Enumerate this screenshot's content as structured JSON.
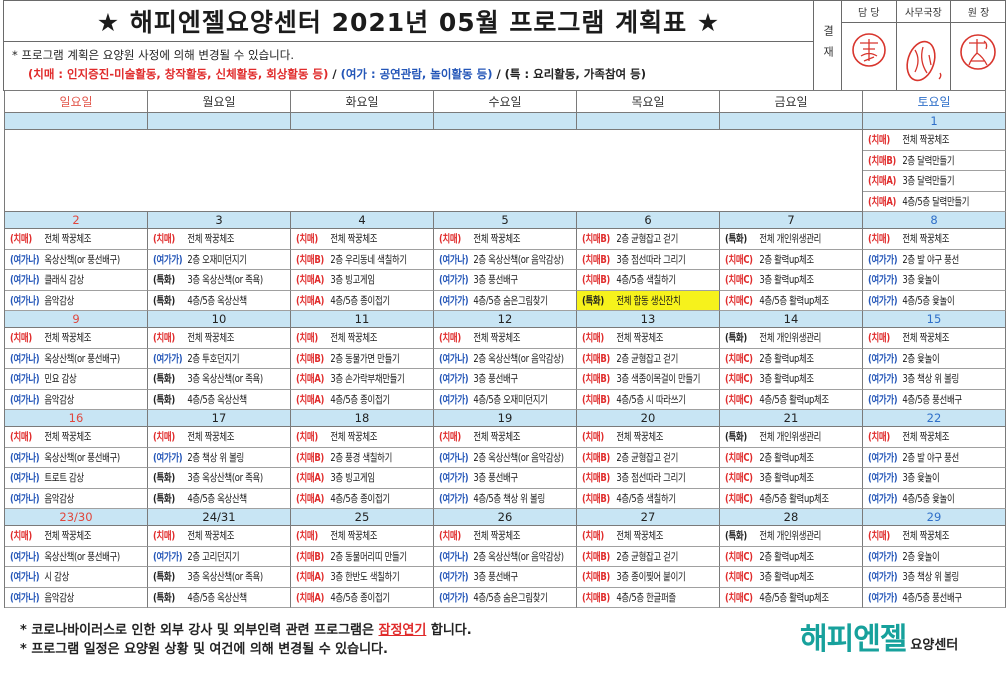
{
  "header": {
    "title": "★ 해피엔젤요양센터 2021년 05월 프로그램 계획표 ★"
  },
  "approval": {
    "label": "결재",
    "roles": [
      "담 당",
      "사무국장",
      "원 장"
    ]
  },
  "notes": {
    "line1": "* 프로그램 계획은 요양원 사정에 의해 변경될 수 있습니다.",
    "dementia": "(치매 : 인지증진-미술활동, 창작활동, 신체활동, 회상활동 등)",
    "separator": " / ",
    "leisure": "(여가 : 공연관람, 놀이활동 등)",
    "special": "(특 : 요리활동, 가족참여 등)"
  },
  "weekdays": [
    "일요일",
    "월요일",
    "화요일",
    "수요일",
    "목요일",
    "금요일",
    "토요일"
  ],
  "weeks": [
    {
      "dates": [
        "",
        "",
        "",
        "",
        "",
        "",
        "1"
      ],
      "days": [
        [],
        [],
        [],
        [],
        [],
        [],
        [
          {
            "tag": "(치매)",
            "text": "전체 짝꿍체조"
          },
          {
            "tag": "(치매B)",
            "text": "2층 달력만들기"
          },
          {
            "tag": "(치매A)",
            "text": "3층 달력만들기"
          },
          {
            "tag": "(치매A)",
            "text": "4층/5층 달력만들기"
          }
        ]
      ]
    },
    {
      "dates": [
        "2",
        "3",
        "4",
        "5",
        "6",
        "7",
        "8"
      ],
      "days": [
        [
          {
            "tag": "(치매)",
            "text": "전체 짝꿍체조"
          },
          {
            "tag": "(여가나)",
            "text": "옥상산책(or 풍선배구)"
          },
          {
            "tag": "(여가나)",
            "text": "클래식 감상"
          },
          {
            "tag": "(여가나)",
            "text": "음악감상"
          }
        ],
        [
          {
            "tag": "(치매)",
            "text": "전체 짝꿍체조"
          },
          {
            "tag": "(여가가)",
            "text": "2층 오재미던지기"
          },
          {
            "tag": "(특화)",
            "text": "3층 옥상산책(or 족욕)"
          },
          {
            "tag": "(특화)",
            "text": "4층/5층 옥상산책"
          }
        ],
        [
          {
            "tag": "(치매)",
            "text": "전체 짝꿍체조"
          },
          {
            "tag": "(치매B)",
            "text": "2층 우리동네 색칠하기"
          },
          {
            "tag": "(치매A)",
            "text": "3층 빙고게임"
          },
          {
            "tag": "(치매A)",
            "text": "4층/5층 종이접기"
          }
        ],
        [
          {
            "tag": "(치매)",
            "text": "전체 짝꿍체조"
          },
          {
            "tag": "(여가나)",
            "text": "2층 옥상산책(or 음악감상)"
          },
          {
            "tag": "(여가가)",
            "text": "3층 풍선배구"
          },
          {
            "tag": "(여가가)",
            "text": "4층/5층 숨은그림찾기"
          }
        ],
        [
          {
            "tag": "(치매B)",
            "text": "2층 균형잡고 걷기"
          },
          {
            "tag": "(치매B)",
            "text": "3층 점선따라 그리기"
          },
          {
            "tag": "(치매B)",
            "text": "4층/5층 색칠하기"
          },
          {
            "tag": "(특화)",
            "text": "전체 합동 생신잔치",
            "highlight": true
          }
        ],
        [
          {
            "tag": "(특화)",
            "text": "전체 개인위생관리"
          },
          {
            "tag": "(치매C)",
            "text": "2층 활력up체조"
          },
          {
            "tag": "(치매C)",
            "text": "3층 활력up체조"
          },
          {
            "tag": "(치매C)",
            "text": "4층/5층 활력up체조"
          }
        ],
        [
          {
            "tag": "(치매)",
            "text": "전체 짝꿍체조"
          },
          {
            "tag": "(여가가)",
            "text": "2층 발 야구 풍선"
          },
          {
            "tag": "(여가가)",
            "text": "3층 윷놀이"
          },
          {
            "tag": "(여가가)",
            "text": "4층/5층 윷놀이"
          }
        ]
      ]
    },
    {
      "dates": [
        "9",
        "10",
        "11",
        "12",
        "13",
        "14",
        "15"
      ],
      "days": [
        [
          {
            "tag": "(치매)",
            "text": "전체 짝꿍체조"
          },
          {
            "tag": "(여가나)",
            "text": "옥상산책(or 풍선배구)"
          },
          {
            "tag": "(여가나)",
            "text": "민요 감상"
          },
          {
            "tag": "(여가나)",
            "text": "음악감상"
          }
        ],
        [
          {
            "tag": "(치매)",
            "text": "전체 짝꿍체조"
          },
          {
            "tag": "(여가가)",
            "text": "2층 투호던지기"
          },
          {
            "tag": "(특화)",
            "text": "3층 옥상산책(or 족욕)"
          },
          {
            "tag": "(특화)",
            "text": "4층/5층 옥상산책"
          }
        ],
        [
          {
            "tag": "(치매)",
            "text": "전체 짝꿍체조"
          },
          {
            "tag": "(치매B)",
            "text": "2층 동물가면 만들기"
          },
          {
            "tag": "(치매A)",
            "text": "3층 손가락부채만들기"
          },
          {
            "tag": "(치매A)",
            "text": "4층/5층 종이접기"
          }
        ],
        [
          {
            "tag": "(치매)",
            "text": "전체 짝꿍체조"
          },
          {
            "tag": "(여가나)",
            "text": "2층 옥상산책(or 음악감상)"
          },
          {
            "tag": "(여가가)",
            "text": "3층 풍선배구"
          },
          {
            "tag": "(여가가)",
            "text": "4층/5층 오재미던지기"
          }
        ],
        [
          {
            "tag": "(치매)",
            "text": "전체 짝꿍체조"
          },
          {
            "tag": "(치매B)",
            "text": "2층 균형잡고 걷기"
          },
          {
            "tag": "(치매B)",
            "text": "3층 색종이목걸이 만들기"
          },
          {
            "tag": "(치매B)",
            "text": "4층/5층 시 따라쓰기"
          }
        ],
        [
          {
            "tag": "(특화)",
            "text": "전체 개인위생관리"
          },
          {
            "tag": "(치매C)",
            "text": "2층 활력up체조"
          },
          {
            "tag": "(치매C)",
            "text": "3층 활력up체조"
          },
          {
            "tag": "(치매C)",
            "text": "4층/5층 활력up체조"
          }
        ],
        [
          {
            "tag": "(치매)",
            "text": "전체 짝꿍체조"
          },
          {
            "tag": "(여가가)",
            "text": "2층 윷놀이"
          },
          {
            "tag": "(여가가)",
            "text": "3층 책상 위 볼링"
          },
          {
            "tag": "(여가가)",
            "text": "4층/5층 풍선배구"
          }
        ]
      ]
    },
    {
      "dates": [
        "16",
        "17",
        "18",
        "19",
        "20",
        "21",
        "22"
      ],
      "days": [
        [
          {
            "tag": "(치매)",
            "text": "전체 짝꿍체조"
          },
          {
            "tag": "(여가나)",
            "text": "옥상산책(or 풍선배구)"
          },
          {
            "tag": "(여가나)",
            "text": "트로트 감상"
          },
          {
            "tag": "(여가나)",
            "text": "음악감상"
          }
        ],
        [
          {
            "tag": "(치매)",
            "text": "전체 짝꿍체조"
          },
          {
            "tag": "(여가가)",
            "text": "2층 책상 위 볼링"
          },
          {
            "tag": "(특화)",
            "text": "3층 옥상산책(or 족욕)"
          },
          {
            "tag": "(특화)",
            "text": "4층/5층 옥상산책"
          }
        ],
        [
          {
            "tag": "(치매)",
            "text": "전체 짝꿍체조"
          },
          {
            "tag": "(치매B)",
            "text": "2층 풍경 색칠하기"
          },
          {
            "tag": "(치매A)",
            "text": "3층 빙고게임"
          },
          {
            "tag": "(치매A)",
            "text": "4층/5층 종이접기"
          }
        ],
        [
          {
            "tag": "(치매)",
            "text": "전체 짝꿍체조"
          },
          {
            "tag": "(여가나)",
            "text": "2층 옥상산책(or 음악감상)"
          },
          {
            "tag": "(여가가)",
            "text": "3층 풍선배구"
          },
          {
            "tag": "(여가가)",
            "text": "4층/5층 책상 위 볼링"
          }
        ],
        [
          {
            "tag": "(치매)",
            "text": "전체 짝꿍체조"
          },
          {
            "tag": "(치매B)",
            "text": "2층 균형잡고 걷기"
          },
          {
            "tag": "(치매B)",
            "text": "3층 점선따라 그리기"
          },
          {
            "tag": "(치매B)",
            "text": "4층/5층 색칠하기"
          }
        ],
        [
          {
            "tag": "(특화)",
            "text": "전체 개인위생관리"
          },
          {
            "tag": "(치매C)",
            "text": "2층 활력up체조"
          },
          {
            "tag": "(치매C)",
            "text": "3층 활력up체조"
          },
          {
            "tag": "(치매C)",
            "text": "4층/5층 활력up체조"
          }
        ],
        [
          {
            "tag": "(치매)",
            "text": "전체 짝꿍체조"
          },
          {
            "tag": "(여가가)",
            "text": "2층 발 야구 풍선"
          },
          {
            "tag": "(여가가)",
            "text": "3층 윷놀이"
          },
          {
            "tag": "(여가가)",
            "text": "4층/5층 윷놀이"
          }
        ]
      ]
    },
    {
      "dates": [
        "23/30",
        "24/31",
        "25",
        "26",
        "27",
        "28",
        "29"
      ],
      "days": [
        [
          {
            "tag": "(치매)",
            "text": "전체 짝꿍체조"
          },
          {
            "tag": "(여가나)",
            "text": "옥상산책(or 풍선배구)"
          },
          {
            "tag": "(여가나)",
            "text": "시 감상"
          },
          {
            "tag": "(여가나)",
            "text": "음악감상"
          }
        ],
        [
          {
            "tag": "(치매)",
            "text": "전체 짝꿍체조"
          },
          {
            "tag": "(여가가)",
            "text": "2층 고리던지기"
          },
          {
            "tag": "(특화)",
            "text": "3층 옥상산책(or 족욕)"
          },
          {
            "tag": "(특화)",
            "text": "4층/5층 옥상산책"
          }
        ],
        [
          {
            "tag": "(치매)",
            "text": "전체 짝꿍체조"
          },
          {
            "tag": "(치매B)",
            "text": "2층 동물머리띠 만들기"
          },
          {
            "tag": "(치매A)",
            "text": "3층 한반도 색칠하기"
          },
          {
            "tag": "(치매A)",
            "text": "4층/5층 종이접기"
          }
        ],
        [
          {
            "tag": "(치매)",
            "text": "전체 짝꿍체조"
          },
          {
            "tag": "(여가나)",
            "text": "2층 옥상산책(or 음악감상)"
          },
          {
            "tag": "(여가가)",
            "text": "3층 풍선배구"
          },
          {
            "tag": "(여가가)",
            "text": "4층/5층 숨은그림찾기"
          }
        ],
        [
          {
            "tag": "(치매)",
            "text": "전체 짝꿍체조"
          },
          {
            "tag": "(치매B)",
            "text": "2층 균형잡고 걷기"
          },
          {
            "tag": "(치매B)",
            "text": "3층 종이찢어 붙이기"
          },
          {
            "tag": "(치매B)",
            "text": "4층/5층 한글퍼즐"
          }
        ],
        [
          {
            "tag": "(특화)",
            "text": "전체 개인위생관리"
          },
          {
            "tag": "(치매C)",
            "text": "2층 활력up체조"
          },
          {
            "tag": "(치매C)",
            "text": "3층 활력up체조"
          },
          {
            "tag": "(치매C)",
            "text": "4층/5층 활력up체조"
          }
        ],
        [
          {
            "tag": "(치매)",
            "text": "전체 짝꿍체조"
          },
          {
            "tag": "(여가가)",
            "text": "2층 윷놀이"
          },
          {
            "tag": "(여가가)",
            "text": "3층 책상 위 볼링"
          },
          {
            "tag": "(여가가)",
            "text": "4층/5층 풍선배구"
          }
        ]
      ]
    }
  ],
  "footer": {
    "line1_before": "* 코로나바이러스로 인한 외부 강사 및 외부인력 관련 프로그램은 ",
    "line1_emphasis": "잠정연기",
    "line1_after": " 합니다.",
    "line2": "* 프로그램 일정은 요양원 상황 및 여건에 의해 변경될 수 있습니다."
  },
  "logo": {
    "name": "해피엔젤",
    "suffix": "요양센터"
  },
  "colors": {
    "dementia": "#e02b2b",
    "leisure": "#2456b8",
    "special": "#1e1e1e",
    "sunday": "#e0463c",
    "saturday": "#2f6fc9",
    "weekday": "#222222",
    "date_row": "#c8e5f4",
    "highlight": "#f6f21c",
    "emphasis": "#e02b2b",
    "logo": "#17a19c",
    "seal": "#d8352d"
  }
}
